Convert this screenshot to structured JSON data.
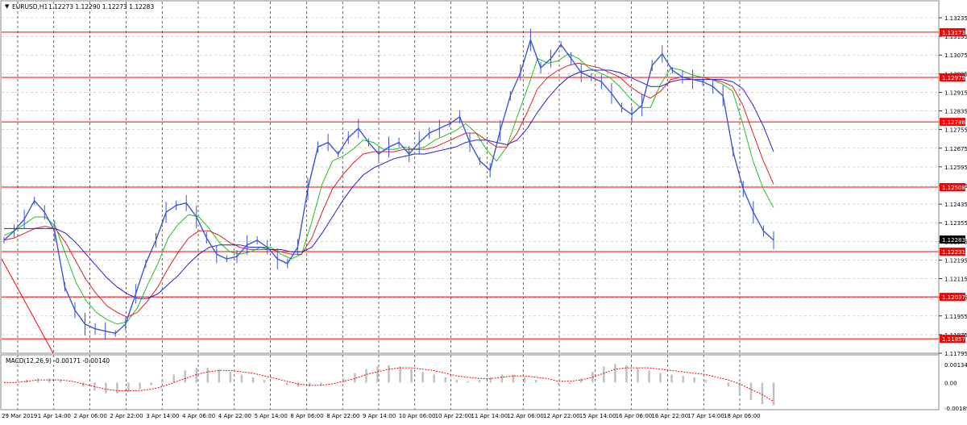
{
  "header": {
    "symbol_label": "EURUSD,H1",
    "ohlc": "1.12273 1.12290 1.12273 1.12283"
  },
  "macd": {
    "label": "MACD(12,26,9) -0.00171 -0.00140",
    "ticks": [
      "0.001347",
      "0.00",
      "-0.001898"
    ],
    "tick_values": [
      0.001347,
      0.0,
      -0.001898
    ],
    "histogram": [
      0.0,
      0.0,
      0.0002,
      0.0003,
      0.0003,
      0.0002,
      0.0,
      -0.0003,
      -0.0006,
      -0.0008,
      -0.0008,
      -0.0007,
      -0.0005,
      -0.0002,
      0.0002,
      0.0006,
      0.0009,
      0.0011,
      0.0011,
      0.001,
      0.0008,
      0.0006,
      0.0004,
      0.0002,
      0.0,
      -0.0002,
      -0.0003,
      -0.0003,
      -0.0002,
      0.0,
      0.0003,
      0.0007,
      0.001,
      0.0012,
      0.0013,
      0.0012,
      0.001,
      0.0008,
      0.0006,
      0.0004,
      0.0002,
      0.0001,
      0.0002,
      0.0004,
      0.0006,
      0.0006,
      0.0004,
      0.0002,
      0.0,
      -0.0002,
      -0.0001,
      0.0003,
      0.0008,
      0.0012,
      0.0014,
      0.0013,
      0.0011,
      0.0009,
      0.0007,
      0.0006,
      0.0005,
      0.0004,
      0.0002,
      0.0,
      -0.0003,
      -0.0008,
      -0.0013,
      -0.0016,
      -0.0017
    ],
    "signal": [
      0.0,
      0.0,
      0.0001,
      0.0002,
      0.0002,
      0.0002,
      0.0001,
      -0.0001,
      -0.0003,
      -0.0005,
      -0.0006,
      -0.0006,
      -0.0006,
      -0.0005,
      -0.0003,
      0.0,
      0.0003,
      0.0006,
      0.0008,
      0.0009,
      0.0009,
      0.0008,
      0.0007,
      0.0005,
      0.0003,
      0.0001,
      -0.0001,
      -0.0002,
      -0.0002,
      -0.0001,
      0.0001,
      0.0003,
      0.0006,
      0.0008,
      0.001,
      0.0011,
      0.0011,
      0.001,
      0.0009,
      0.0007,
      0.0005,
      0.0004,
      0.0003,
      0.0003,
      0.0004,
      0.0005,
      0.0005,
      0.0004,
      0.0003,
      0.0001,
      0.0001,
      0.0002,
      0.0004,
      0.0007,
      0.001,
      0.0011,
      0.0011,
      0.0011,
      0.001,
      0.0009,
      0.0008,
      0.0007,
      0.0006,
      0.0004,
      0.0002,
      -0.0001,
      -0.0005,
      -0.0009,
      -0.0014
    ]
  },
  "price_axis": {
    "ticks": [
      "1.13235",
      "1.13155",
      "1.13075",
      "1.12995",
      "1.12915",
      "1.12835",
      "1.12755",
      "1.12675",
      "1.12595",
      "1.12515",
      "1.12435",
      "1.12355",
      "1.12275",
      "1.12195",
      "1.12115",
      "1.12035",
      "1.11955",
      "1.11875",
      "1.11795"
    ],
    "current_price": "1.12283",
    "current_price_color": "#000000"
  },
  "levels": [
    {
      "label": "1.13173",
      "value": 1.13173
    },
    {
      "label": "1.12979",
      "value": 1.12979
    },
    {
      "label": "1.12788",
      "value": 1.12788
    },
    {
      "label": "1.12508",
      "value": 1.12508
    },
    {
      "label": "1.12231",
      "value": 1.12231
    },
    {
      "label": "1.12037",
      "value": 1.12037
    },
    {
      "label": "1.11857",
      "value": 1.11857
    }
  ],
  "time_axis": {
    "labels": [
      "29 Mar 2019",
      "1 Apr 14:00",
      "2 Apr 06:00",
      "2 Apr 22:00",
      "3 Apr 14:00",
      "4 Apr 06:00",
      "4 Apr 22:00",
      "5 Apr 14:00",
      "8 Apr 06:00",
      "8 Apr 22:00",
      "9 Apr 14:00",
      "10 Apr 06:00",
      "10 Apr 22:00",
      "11 Apr 14:00",
      "12 Apr 06:00",
      "12 Apr 22:00",
      "15 Apr 14:00",
      "16 Apr 06:00",
      "16 Apr 22:00",
      "17 Apr 14:00",
      "18 Apr 06:00"
    ]
  },
  "colors": {
    "price_line": "#3a55d8",
    "ma_fast": "#22c022",
    "ma_mid": "#e02020",
    "ma_slow": "#2020d0",
    "level_line": "#ff0000",
    "level_label_bg": "#ff0000",
    "grid": "#b8b8b8",
    "macd_hist": "#c0c0c0",
    "macd_signal": "#ff0000"
  },
  "chart_data": {
    "type": "line",
    "title": "EURUSD,H1",
    "ylim": [
      1.11795,
      1.13235
    ],
    "series": [
      {
        "color": "#3a55d8",
        "values": [
          1.1228,
          1.1232,
          1.1237,
          1.1245,
          1.124,
          1.1232,
          1.1208,
          1.1198,
          1.1192,
          1.119,
          1.1189,
          1.1188,
          1.1192,
          1.1205,
          1.1218,
          1.1228,
          1.124,
          1.1243,
          1.1244,
          1.1238,
          1.1229,
          1.1222,
          1.122,
          1.1221,
          1.1226,
          1.1228,
          1.1225,
          1.122,
          1.1218,
          1.1225,
          1.125,
          1.1268,
          1.127,
          1.1265,
          1.1272,
          1.1276,
          1.127,
          1.1265,
          1.1268,
          1.127,
          1.1265,
          1.127,
          1.1274,
          1.1276,
          1.1278,
          1.1281,
          1.127,
          1.1262,
          1.1258,
          1.1275,
          1.129,
          1.13,
          1.1314,
          1.1302,
          1.1306,
          1.1312,
          1.1306,
          1.13,
          1.1298,
          1.1296,
          1.1291,
          1.1285,
          1.1282,
          1.1286,
          1.1303,
          1.1308,
          1.1301,
          1.1298,
          1.1297,
          1.1296,
          1.1294,
          1.129,
          1.1266,
          1.125,
          1.124,
          1.1232,
          1.1228
        ]
      },
      {
        "color": "#22c022",
        "values": [
          1.123,
          1.1232,
          1.1235,
          1.1238,
          1.1238,
          1.1234,
          1.1222,
          1.121,
          1.1202,
          1.1197,
          1.1194,
          1.1192,
          1.1193,
          1.1199,
          1.1209,
          1.1218,
          1.1229,
          1.1235,
          1.1239,
          1.1238,
          1.1233,
          1.1227,
          1.1223,
          1.1222,
          1.1223,
          1.1225,
          1.1225,
          1.1222,
          1.122,
          1.1222,
          1.1236,
          1.1252,
          1.1262,
          1.1264,
          1.1267,
          1.1271,
          1.127,
          1.1267,
          1.1267,
          1.1268,
          1.1267,
          1.1268,
          1.1271,
          1.1273,
          1.1275,
          1.1278,
          1.1274,
          1.1267,
          1.1262,
          1.1268,
          1.1281,
          1.1293,
          1.1306,
          1.1304,
          1.1305,
          1.1308,
          1.1306,
          1.1302,
          1.13,
          1.1298,
          1.1294,
          1.1289,
          1.1285,
          1.1285,
          1.1295,
          1.1302,
          1.1301,
          1.1299,
          1.1298,
          1.1297,
          1.1295,
          1.1292,
          1.1278,
          1.1262,
          1.125,
          1.1242
        ]
      },
      {
        "color": "#e02020",
        "values": [
          1.1228,
          1.1229,
          1.1231,
          1.1233,
          1.1234,
          1.1233,
          1.1227,
          1.1219,
          1.1211,
          1.1205,
          1.12,
          1.1197,
          1.1195,
          1.1197,
          1.1202,
          1.1208,
          1.1216,
          1.1223,
          1.1229,
          1.1232,
          1.1232,
          1.123,
          1.1227,
          1.1225,
          1.1224,
          1.1224,
          1.1224,
          1.1223,
          1.1222,
          1.1222,
          1.1229,
          1.124,
          1.125,
          1.1256,
          1.1261,
          1.1265,
          1.1266,
          1.1266,
          1.1266,
          1.1267,
          1.1267,
          1.1267,
          1.1268,
          1.127,
          1.1272,
          1.1274,
          1.1274,
          1.1271,
          1.1268,
          1.1268,
          1.1274,
          1.1283,
          1.1293,
          1.1298,
          1.1301,
          1.1303,
          1.1304,
          1.1303,
          1.1302,
          1.13,
          1.1298,
          1.1294,
          1.1291,
          1.1289,
          1.1292,
          1.1297,
          1.1298,
          1.1298,
          1.1298,
          1.1297,
          1.1296,
          1.1294,
          1.1286,
          1.1274,
          1.1262,
          1.1252
        ]
      },
      {
        "color": "#2020d0",
        "values": [
          1.1233,
          1.1233,
          1.1233,
          1.1233,
          1.1233,
          1.1233,
          1.1231,
          1.1227,
          1.1222,
          1.1217,
          1.1212,
          1.1208,
          1.1205,
          1.1203,
          1.1203,
          1.1205,
          1.1209,
          1.1213,
          1.1218,
          1.1222,
          1.1225,
          1.1226,
          1.1226,
          1.1226,
          1.1225,
          1.1225,
          1.1224,
          1.1224,
          1.1223,
          1.1223,
          1.1225,
          1.1231,
          1.1238,
          1.1245,
          1.1251,
          1.1256,
          1.1259,
          1.1261,
          1.1263,
          1.1264,
          1.1265,
          1.1265,
          1.1266,
          1.1267,
          1.1268,
          1.127,
          1.1271,
          1.1271,
          1.127,
          1.1269,
          1.1271,
          1.1276,
          1.1283,
          1.1289,
          1.1294,
          1.1298,
          1.13,
          1.1301,
          1.1301,
          1.1301,
          1.13,
          1.1298,
          1.1296,
          1.1294,
          1.1294,
          1.1296,
          1.1297,
          1.1297,
          1.1297,
          1.1297,
          1.1297,
          1.1296,
          1.1293,
          1.1286,
          1.1277,
          1.1266
        ]
      }
    ],
    "grid": true
  }
}
